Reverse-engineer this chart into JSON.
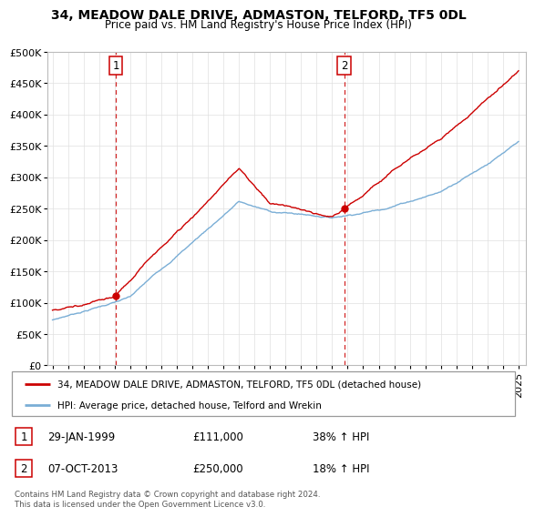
{
  "title": "34, MEADOW DALE DRIVE, ADMASTON, TELFORD, TF5 0DL",
  "subtitle": "Price paid vs. HM Land Registry's House Price Index (HPI)",
  "legend_label_red": "34, MEADOW DALE DRIVE, ADMASTON, TELFORD, TF5 0DL (detached house)",
  "legend_label_blue": "HPI: Average price, detached house, Telford and Wrekin",
  "sale1_date": "29-JAN-1999",
  "sale1_price": "£111,000",
  "sale1_hpi": "38% ↑ HPI",
  "sale2_date": "07-OCT-2013",
  "sale2_price": "£250,000",
  "sale2_hpi": "18% ↑ HPI",
  "footer": "Contains HM Land Registry data © Crown copyright and database right 2024.\nThis data is licensed under the Open Government Licence v3.0.",
  "ylim": [
    0,
    500000
  ],
  "yticks": [
    0,
    50000,
    100000,
    150000,
    200000,
    250000,
    300000,
    350000,
    400000,
    450000,
    500000
  ],
  "sale1_x": 1999.08,
  "sale1_y": 111000,
  "sale2_x": 2013.77,
  "sale2_y": 250000,
  "vline1_x": 1999.08,
  "vline2_x": 2013.77,
  "red_color": "#cc0000",
  "blue_color": "#7aaed6",
  "vline_color": "#cc0000",
  "grid_color": "#e0e0e0",
  "xlim_left": 1994.7,
  "xlim_right": 2025.5
}
